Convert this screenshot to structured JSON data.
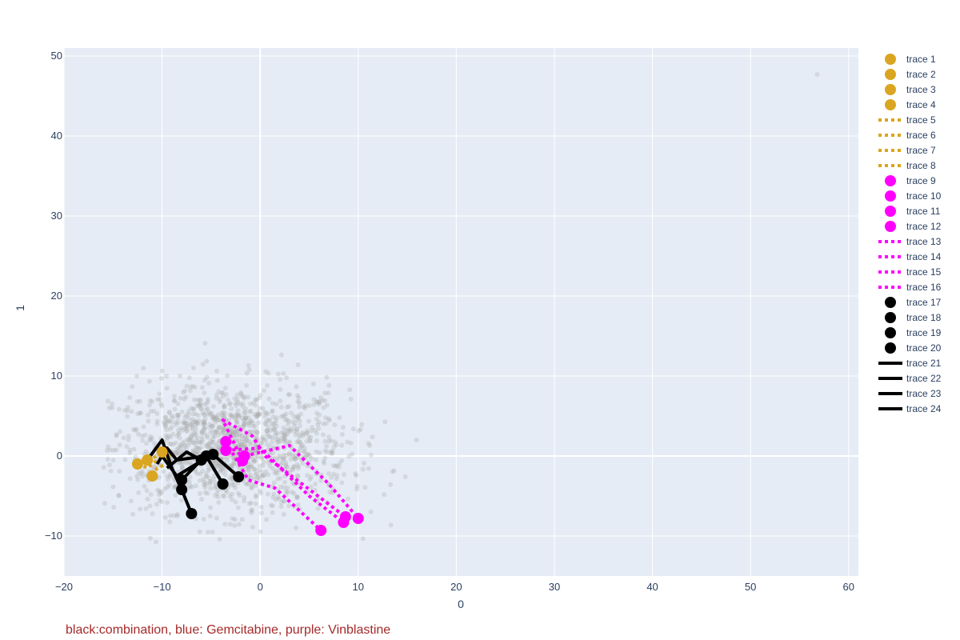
{
  "caption": "black:combination, blue: Gemcitabine, purple: Vinblastine",
  "colors": {
    "plot_background": "#e5ecf6",
    "grid": "#ffffff",
    "background_points": "#a9a9a9",
    "gold": "#daa520",
    "magenta": "#ff00ff",
    "black": "#000000",
    "caption": "#a52a2a"
  },
  "chart_data": {
    "type": "scatter",
    "xlabel": "0",
    "ylabel": "1",
    "xlim": [
      -20,
      61
    ],
    "ylim": [
      -15,
      51
    ],
    "xticks": [
      -20,
      -10,
      0,
      10,
      20,
      30,
      40,
      50,
      60
    ],
    "yticks": [
      -10,
      0,
      10,
      20,
      30,
      40,
      50
    ],
    "xtick_labels": [
      "−20",
      "−10",
      "0",
      "10",
      "20",
      "30",
      "40",
      "50",
      "60"
    ],
    "ytick_labels": [
      "−10",
      "0",
      "10",
      "20",
      "30",
      "40",
      "50"
    ],
    "grid": true,
    "legend_position": "right",
    "background_cloud": {
      "color": "#a9a9a9",
      "opacity": 0.3,
      "center": [
        -3,
        1
      ],
      "spread": [
        6,
        4
      ],
      "outlier": [
        56.8,
        47.7
      ]
    },
    "series": [
      {
        "name": "trace 1",
        "mode": "markers",
        "color": "#daa520",
        "x": [
          -12.5
        ],
        "y": [
          -1.0
        ]
      },
      {
        "name": "trace 2",
        "mode": "markers",
        "color": "#daa520",
        "x": [
          -11.0
        ],
        "y": [
          -2.5
        ]
      },
      {
        "name": "trace 3",
        "mode": "markers",
        "color": "#daa520",
        "x": [
          -11.5
        ],
        "y": [
          -0.5
        ]
      },
      {
        "name": "trace 4",
        "mode": "markers",
        "color": "#daa520",
        "x": [
          -10.0
        ],
        "y": [
          0.5
        ]
      },
      {
        "name": "trace 5",
        "mode": "lines",
        "dash": "dot",
        "color": "#daa520",
        "x": [
          -12.5,
          -11.5,
          -10.5
        ],
        "y": [
          -1.0,
          -1.5,
          -0.5
        ]
      },
      {
        "name": "trace 6",
        "mode": "lines",
        "dash": "dot",
        "color": "#daa520",
        "x": [
          -11.0,
          -10.5,
          -9.5
        ],
        "y": [
          -2.5,
          -1.5,
          -1.0
        ]
      },
      {
        "name": "trace 7",
        "mode": "lines",
        "dash": "dot",
        "color": "#daa520",
        "x": [
          -11.5,
          -10.5,
          -9.0
        ],
        "y": [
          -0.5,
          0.0,
          -0.5
        ]
      },
      {
        "name": "trace 8",
        "mode": "lines",
        "dash": "dot",
        "color": "#daa520",
        "x": [
          -10.0,
          -9.5,
          -9.0
        ],
        "y": [
          0.5,
          1.0,
          0.0
        ]
      },
      {
        "name": "trace 9",
        "mode": "markers",
        "color": "#ff00ff",
        "x": [
          -3.5,
          6.2
        ],
        "y": [
          1.8,
          -9.3
        ]
      },
      {
        "name": "trace 10",
        "mode": "markers",
        "color": "#ff00ff",
        "x": [
          -3.5,
          8.5
        ],
        "y": [
          0.7,
          -8.3
        ]
      },
      {
        "name": "trace 11",
        "mode": "markers",
        "color": "#ff00ff",
        "x": [
          -1.6,
          10.0
        ],
        "y": [
          0.0,
          -7.8
        ]
      },
      {
        "name": "trace 12",
        "mode": "markers",
        "color": "#ff00ff",
        "x": [
          -1.8,
          8.7
        ],
        "y": [
          -0.6,
          -7.6
        ]
      },
      {
        "name": "trace 13",
        "mode": "lines",
        "dash": "dot",
        "color": "#ff00ff",
        "x": [
          -3.5,
          -1.2,
          1.5,
          6.2
        ],
        "y": [
          1.8,
          -3.0,
          -4.0,
          -9.3
        ]
      },
      {
        "name": "trace 14",
        "mode": "lines",
        "dash": "dot",
        "color": "#ff00ff",
        "x": [
          -3.5,
          0.0,
          5.0,
          8.5
        ],
        "y": [
          0.7,
          1.0,
          -5.0,
          -8.3
        ]
      },
      {
        "name": "trace 15",
        "mode": "lines",
        "dash": "dot",
        "color": "#ff00ff",
        "x": [
          -1.6,
          3.0,
          7.0,
          10.0
        ],
        "y": [
          0.0,
          1.3,
          -3.5,
          -7.8
        ]
      },
      {
        "name": "trace 16",
        "mode": "lines",
        "dash": "dot",
        "color": "#ff00ff",
        "x": [
          -1.8,
          -3.8,
          -0.8,
          0.5,
          8.7
        ],
        "y": [
          -0.6,
          4.5,
          2.5,
          0.0,
          -7.6
        ]
      },
      {
        "name": "trace 17",
        "mode": "markers",
        "color": "#000000",
        "x": [
          -8.0,
          -7.0
        ],
        "y": [
          -4.2,
          -7.2
        ]
      },
      {
        "name": "trace 18",
        "mode": "markers",
        "color": "#000000",
        "x": [
          -5.5,
          -3.8
        ],
        "y": [
          0.0,
          -3.5
        ]
      },
      {
        "name": "trace 19",
        "mode": "markers",
        "color": "#000000",
        "x": [
          -4.8,
          -2.2
        ],
        "y": [
          0.2,
          -2.6
        ]
      },
      {
        "name": "trace 20",
        "mode": "markers",
        "color": "#000000",
        "x": [
          -6.0,
          -8.0
        ],
        "y": [
          -0.5,
          -3.0
        ]
      },
      {
        "name": "trace 21",
        "mode": "lines",
        "color": "#000000",
        "x": [
          -11.5,
          -10.0,
          -9.0,
          -8.0,
          -7.0
        ],
        "y": [
          -0.5,
          2.0,
          -1.5,
          -4.2,
          -7.2
        ]
      },
      {
        "name": "trace 22",
        "mode": "lines",
        "color": "#000000",
        "x": [
          -10.5,
          -9.5,
          -8.5,
          -5.5,
          -3.8
        ],
        "y": [
          -1.0,
          1.0,
          -0.5,
          0.0,
          -3.5
        ]
      },
      {
        "name": "trace 23",
        "mode": "lines",
        "dash": "solid",
        "color": "#000000",
        "x": [
          -10.0,
          -8.5,
          -6.5,
          -4.8,
          -2.2
        ],
        "y": [
          0.0,
          -2.5,
          -1.0,
          0.2,
          -2.6
        ]
      },
      {
        "name": "trace 24",
        "mode": "lines",
        "color": "#000000",
        "x": [
          -9.5,
          -7.5,
          -6.0,
          -8.0
        ],
        "y": [
          -1.5,
          0.5,
          -0.5,
          -3.0
        ]
      }
    ]
  }
}
